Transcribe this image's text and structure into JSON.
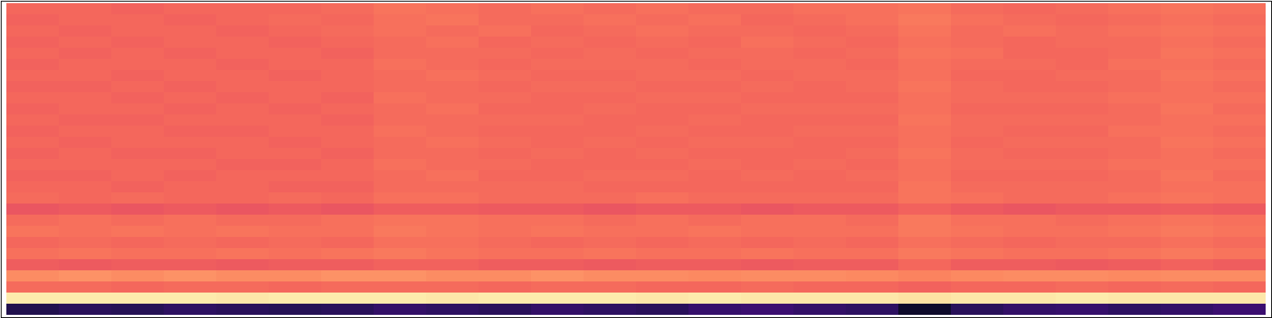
{
  "chart_data": {
    "type": "heatmap",
    "color": "magma",
    "tick_labels": false,
    "zlim": [
      0,
      1
    ],
    "cells": [
      [
        0.68,
        0.68,
        0.67,
        0.68,
        0.68,
        0.68,
        0.69,
        0.71,
        0.7,
        0.69,
        0.7,
        0.69,
        0.7,
        0.69,
        0.69,
        0.7,
        0.7,
        0.71,
        0.69,
        0.68,
        0.69,
        0.7,
        0.71,
        0.7
      ],
      [
        0.67,
        0.68,
        0.68,
        0.67,
        0.68,
        0.69,
        0.68,
        0.7,
        0.71,
        0.69,
        0.69,
        0.7,
        0.69,
        0.7,
        0.68,
        0.69,
        0.7,
        0.72,
        0.7,
        0.69,
        0.68,
        0.69,
        0.7,
        0.69
      ],
      [
        0.68,
        0.67,
        0.68,
        0.68,
        0.67,
        0.68,
        0.69,
        0.7,
        0.69,
        0.7,
        0.68,
        0.69,
        0.7,
        0.69,
        0.69,
        0.68,
        0.69,
        0.71,
        0.69,
        0.7,
        0.69,
        0.7,
        0.71,
        0.7
      ],
      [
        0.67,
        0.68,
        0.67,
        0.68,
        0.68,
        0.67,
        0.68,
        0.69,
        0.7,
        0.68,
        0.69,
        0.68,
        0.69,
        0.68,
        0.7,
        0.69,
        0.68,
        0.7,
        0.69,
        0.68,
        0.69,
        0.69,
        0.7,
        0.69
      ],
      [
        0.68,
        0.67,
        0.68,
        0.67,
        0.68,
        0.68,
        0.67,
        0.69,
        0.69,
        0.69,
        0.68,
        0.69,
        0.68,
        0.69,
        0.69,
        0.68,
        0.69,
        0.71,
        0.7,
        0.68,
        0.68,
        0.69,
        0.71,
        0.7
      ],
      [
        0.67,
        0.68,
        0.68,
        0.68,
        0.67,
        0.68,
        0.68,
        0.7,
        0.69,
        0.68,
        0.69,
        0.69,
        0.69,
        0.68,
        0.69,
        0.69,
        0.68,
        0.7,
        0.69,
        0.69,
        0.68,
        0.7,
        0.7,
        0.69
      ],
      [
        0.68,
        0.68,
        0.67,
        0.68,
        0.68,
        0.67,
        0.68,
        0.69,
        0.7,
        0.69,
        0.68,
        0.68,
        0.69,
        0.69,
        0.68,
        0.69,
        0.69,
        0.7,
        0.68,
        0.68,
        0.69,
        0.69,
        0.71,
        0.7
      ],
      [
        0.67,
        0.67,
        0.68,
        0.67,
        0.68,
        0.68,
        0.68,
        0.69,
        0.69,
        0.68,
        0.69,
        0.69,
        0.68,
        0.68,
        0.69,
        0.68,
        0.69,
        0.71,
        0.69,
        0.68,
        0.68,
        0.69,
        0.7,
        0.69
      ],
      [
        0.68,
        0.68,
        0.67,
        0.68,
        0.67,
        0.68,
        0.67,
        0.7,
        0.69,
        0.69,
        0.68,
        0.68,
        0.69,
        0.69,
        0.68,
        0.68,
        0.68,
        0.7,
        0.69,
        0.69,
        0.69,
        0.7,
        0.7,
        0.7
      ],
      [
        0.67,
        0.68,
        0.68,
        0.67,
        0.68,
        0.67,
        0.68,
        0.69,
        0.7,
        0.68,
        0.68,
        0.69,
        0.68,
        0.68,
        0.69,
        0.69,
        0.69,
        0.7,
        0.68,
        0.68,
        0.68,
        0.69,
        0.71,
        0.69
      ],
      [
        0.68,
        0.67,
        0.67,
        0.68,
        0.68,
        0.68,
        0.67,
        0.69,
        0.69,
        0.69,
        0.69,
        0.68,
        0.68,
        0.69,
        0.68,
        0.68,
        0.68,
        0.71,
        0.69,
        0.69,
        0.69,
        0.69,
        0.7,
        0.7
      ],
      [
        0.67,
        0.68,
        0.68,
        0.67,
        0.67,
        0.68,
        0.68,
        0.7,
        0.69,
        0.68,
        0.68,
        0.68,
        0.69,
        0.68,
        0.68,
        0.69,
        0.69,
        0.7,
        0.69,
        0.68,
        0.68,
        0.7,
        0.7,
        0.69
      ],
      [
        0.68,
        0.67,
        0.68,
        0.68,
        0.68,
        0.67,
        0.68,
        0.69,
        0.7,
        0.69,
        0.68,
        0.69,
        0.68,
        0.69,
        0.69,
        0.68,
        0.68,
        0.7,
        0.68,
        0.69,
        0.69,
        0.69,
        0.71,
        0.7
      ],
      [
        0.67,
        0.68,
        0.67,
        0.67,
        0.68,
        0.68,
        0.67,
        0.69,
        0.69,
        0.68,
        0.69,
        0.68,
        0.69,
        0.68,
        0.68,
        0.68,
        0.69,
        0.71,
        0.69,
        0.68,
        0.68,
        0.69,
        0.7,
        0.69
      ],
      [
        0.68,
        0.68,
        0.68,
        0.68,
        0.67,
        0.67,
        0.68,
        0.7,
        0.69,
        0.69,
        0.68,
        0.68,
        0.68,
        0.69,
        0.68,
        0.69,
        0.68,
        0.7,
        0.69,
        0.69,
        0.69,
        0.7,
        0.7,
        0.7
      ],
      [
        0.67,
        0.67,
        0.68,
        0.67,
        0.68,
        0.68,
        0.68,
        0.69,
        0.7,
        0.68,
        0.68,
        0.69,
        0.69,
        0.68,
        0.69,
        0.68,
        0.69,
        0.7,
        0.68,
        0.68,
        0.68,
        0.69,
        0.71,
        0.69
      ],
      [
        0.68,
        0.68,
        0.67,
        0.68,
        0.68,
        0.67,
        0.67,
        0.69,
        0.69,
        0.69,
        0.69,
        0.68,
        0.68,
        0.68,
        0.68,
        0.68,
        0.68,
        0.71,
        0.69,
        0.69,
        0.69,
        0.69,
        0.7,
        0.7
      ],
      [
        0.69,
        0.68,
        0.69,
        0.68,
        0.68,
        0.69,
        0.68,
        0.7,
        0.7,
        0.69,
        0.69,
        0.69,
        0.7,
        0.69,
        0.69,
        0.69,
        0.69,
        0.71,
        0.7,
        0.69,
        0.69,
        0.7,
        0.71,
        0.7
      ],
      [
        0.64,
        0.65,
        0.64,
        0.65,
        0.64,
        0.65,
        0.64,
        0.66,
        0.66,
        0.65,
        0.65,
        0.64,
        0.65,
        0.65,
        0.64,
        0.65,
        0.65,
        0.67,
        0.65,
        0.64,
        0.65,
        0.65,
        0.66,
        0.65
      ],
      [
        0.69,
        0.7,
        0.69,
        0.7,
        0.69,
        0.69,
        0.7,
        0.71,
        0.71,
        0.7,
        0.7,
        0.69,
        0.7,
        0.69,
        0.7,
        0.7,
        0.69,
        0.72,
        0.7,
        0.7,
        0.69,
        0.7,
        0.71,
        0.7
      ],
      [
        0.71,
        0.7,
        0.71,
        0.7,
        0.71,
        0.7,
        0.7,
        0.72,
        0.71,
        0.7,
        0.71,
        0.7,
        0.7,
        0.71,
        0.7,
        0.7,
        0.7,
        0.72,
        0.71,
        0.7,
        0.7,
        0.71,
        0.72,
        0.71
      ],
      [
        0.68,
        0.69,
        0.68,
        0.69,
        0.68,
        0.69,
        0.68,
        0.7,
        0.7,
        0.69,
        0.68,
        0.69,
        0.68,
        0.69,
        0.68,
        0.69,
        0.68,
        0.7,
        0.69,
        0.68,
        0.69,
        0.69,
        0.7,
        0.69
      ],
      [
        0.7,
        0.71,
        0.7,
        0.7,
        0.71,
        0.7,
        0.71,
        0.72,
        0.71,
        0.7,
        0.7,
        0.71,
        0.7,
        0.7,
        0.71,
        0.7,
        0.7,
        0.72,
        0.71,
        0.7,
        0.7,
        0.71,
        0.72,
        0.71
      ],
      [
        0.66,
        0.65,
        0.66,
        0.66,
        0.65,
        0.66,
        0.66,
        0.67,
        0.67,
        0.66,
        0.66,
        0.65,
        0.66,
        0.66,
        0.65,
        0.66,
        0.66,
        0.68,
        0.66,
        0.66,
        0.65,
        0.66,
        0.67,
        0.66
      ],
      [
        0.76,
        0.77,
        0.76,
        0.77,
        0.76,
        0.76,
        0.77,
        0.77,
        0.76,
        0.76,
        0.77,
        0.76,
        0.76,
        0.75,
        0.76,
        0.76,
        0.75,
        0.74,
        0.75,
        0.76,
        0.76,
        0.75,
        0.76,
        0.76
      ],
      [
        0.69,
        0.69,
        0.68,
        0.69,
        0.69,
        0.68,
        0.69,
        0.69,
        0.69,
        0.68,
        0.69,
        0.69,
        0.68,
        0.68,
        0.69,
        0.68,
        0.68,
        0.67,
        0.68,
        0.68,
        0.69,
        0.68,
        0.69,
        0.68
      ],
      [
        0.96,
        0.96,
        0.96,
        0.96,
        0.95,
        0.96,
        0.96,
        0.96,
        0.95,
        0.96,
        0.96,
        0.96,
        0.95,
        0.96,
        0.95,
        0.95,
        0.95,
        0.94,
        0.95,
        0.95,
        0.96,
        0.95,
        0.95,
        0.95
      ],
      [
        0.14,
        0.16,
        0.15,
        0.17,
        0.16,
        0.15,
        0.16,
        0.18,
        0.17,
        0.16,
        0.18,
        0.17,
        0.16,
        0.19,
        0.2,
        0.18,
        0.17,
        0.08,
        0.16,
        0.18,
        0.19,
        0.17,
        0.18,
        0.2
      ]
    ]
  }
}
